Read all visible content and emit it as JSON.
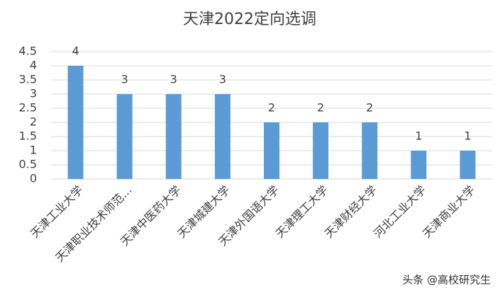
{
  "chart_data": {
    "type": "bar",
    "title": "天津2022定向选调",
    "categories": [
      "天津工业大学",
      "天津职业技术师范…",
      "天津中医药大学",
      "天津城建大学",
      "天津外国语大学",
      "天津理工大学",
      "天津财经大学",
      "河北工业大学",
      "天津商业大学"
    ],
    "values": [
      4,
      3,
      3,
      3,
      2,
      2,
      2,
      1,
      1
    ],
    "color": "#5b9bd5",
    "ylim": [
      0,
      4.5
    ],
    "yticks": [
      0,
      0.5,
      1,
      1.5,
      2,
      2.5,
      3,
      3.5,
      4,
      4.5
    ],
    "grid": true,
    "watermark": "头条 @高校研究生"
  }
}
